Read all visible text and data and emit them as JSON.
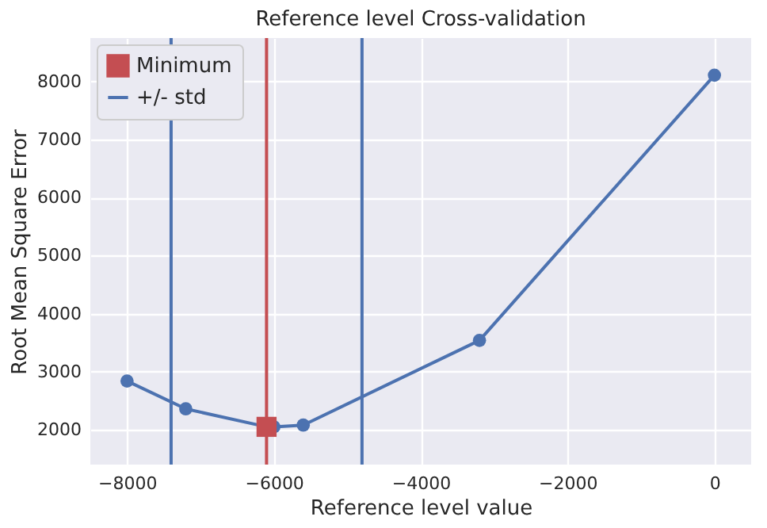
{
  "chart_data": {
    "type": "line",
    "title": "Reference level Cross-validation",
    "xlabel": "Reference level value",
    "ylabel": "Root Mean Square Error",
    "series": [
      {
        "color": "#4c72b0",
        "marker": "circle",
        "x": [
          -8000,
          -7200,
          -6100,
          -6000,
          -5600,
          -3200,
          0
        ],
        "values": [
          2840,
          2360,
          2050,
          2050,
          2080,
          3540,
          8110
        ]
      },
      {
        "type": "scatter",
        "name": "Minimum",
        "color": "#c44e52",
        "marker": "square",
        "x": [
          -6100
        ],
        "values": [
          2050
        ]
      }
    ],
    "ref_lines": [
      {
        "axis": "x",
        "value": -6100,
        "color": "#c44e52"
      },
      {
        "axis": "x",
        "value": -7400,
        "label": "+/- std",
        "color": "#4c72b0"
      },
      {
        "axis": "x",
        "value": -4800,
        "color": "#4c72b0"
      }
    ],
    "xlim": [
      -8500,
      500
    ],
    "ylim": [
      1400,
      8750
    ],
    "xticks": [
      -8000,
      -6000,
      -4000,
      -2000,
      0
    ],
    "yticks": [
      2000,
      3000,
      4000,
      5000,
      6000,
      7000,
      8000
    ],
    "grid": true,
    "legend": "top left"
  }
}
